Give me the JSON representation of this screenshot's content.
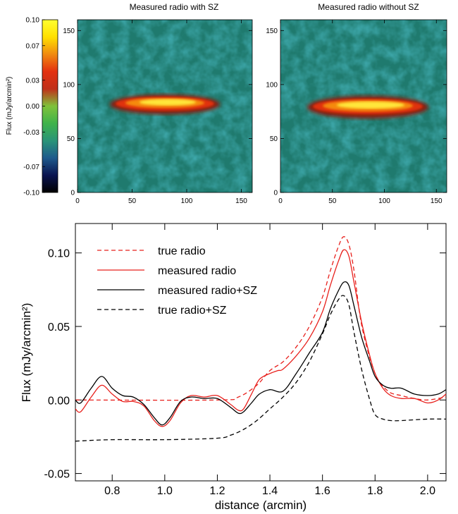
{
  "colorbar": {
    "label": "Flux (mJy/arcmin²)",
    "ticks": [
      "0.10",
      "0.07",
      "0.03",
      "0.00",
      "-0.03",
      "-0.07",
      "-0.10"
    ],
    "range": [
      -0.1,
      0.1
    ],
    "colors": [
      "#000000",
      "#0a1450",
      "#1e5a8c",
      "#2a9478",
      "#3fb34a",
      "#7fc23a",
      "#c0301a",
      "#e33010",
      "#f08a10",
      "#ffe000",
      "#ffff30"
    ]
  },
  "maps": [
    {
      "title": "Measured radio with SZ",
      "xticks": [
        "0",
        "50",
        "100",
        "150"
      ],
      "yticks": [
        "0",
        "50",
        "100",
        "150"
      ],
      "xrange": [
        0,
        160
      ],
      "yrange": [
        0,
        160
      ]
    },
    {
      "title": "Measured radio without SZ",
      "xticks": [
        "0",
        "50",
        "100",
        "150"
      ],
      "yticks": [
        "0",
        "50",
        "100",
        "150"
      ],
      "xrange": [
        0,
        160
      ],
      "yrange": [
        0,
        160
      ]
    }
  ],
  "chart_data": {
    "type": "line",
    "xlabel": "distance (arcmin)",
    "ylabel": "Flux (mJy/arcmin²)",
    "xlim": [
      0.66,
      2.07
    ],
    "ylim": [
      -0.055,
      0.12
    ],
    "xticks": [
      "0.8",
      "1.0",
      "1.2",
      "1.4",
      "1.6",
      "1.8",
      "2.0"
    ],
    "yticks": [
      "-0.05",
      "0.00",
      "0.05",
      "0.10"
    ],
    "legend_position": "top-left",
    "series": [
      {
        "name": "true radio",
        "color": "#e8201c",
        "dash": "dashed",
        "x": [
          0.66,
          1.2,
          1.28,
          1.35,
          1.4,
          1.45,
          1.5,
          1.55,
          1.6,
          1.63,
          1.66,
          1.68,
          1.7,
          1.72,
          1.75,
          1.8,
          1.85,
          1.9,
          1.95,
          2.0,
          2.07
        ],
        "y": [
          0.0,
          0.0,
          0.002,
          0.01,
          0.02,
          0.026,
          0.036,
          0.05,
          0.07,
          0.088,
          0.104,
          0.111,
          0.106,
          0.088,
          0.05,
          0.018,
          0.006,
          0.003,
          0.001,
          0.0,
          0.002
        ]
      },
      {
        "name": "measured radio",
        "color": "#e8201c",
        "dash": "solid",
        "x": [
          0.66,
          0.68,
          0.72,
          0.76,
          0.8,
          0.84,
          0.88,
          0.92,
          0.96,
          0.99,
          1.02,
          1.06,
          1.1,
          1.15,
          1.2,
          1.25,
          1.28,
          1.3,
          1.33,
          1.36,
          1.4,
          1.43,
          1.45,
          1.5,
          1.55,
          1.6,
          1.63,
          1.66,
          1.68,
          1.7,
          1.72,
          1.75,
          1.78,
          1.8,
          1.83,
          1.86,
          1.9,
          1.95,
          2.0,
          2.04,
          2.07
        ],
        "y": [
          -0.006,
          -0.008,
          0.002,
          0.01,
          0.004,
          -0.001,
          -0.001,
          -0.004,
          -0.014,
          -0.018,
          -0.014,
          -0.002,
          0.003,
          0.002,
          0.003,
          -0.003,
          -0.007,
          -0.006,
          0.004,
          0.014,
          0.018,
          0.02,
          0.021,
          0.03,
          0.042,
          0.06,
          0.078,
          0.094,
          0.102,
          0.098,
          0.08,
          0.052,
          0.03,
          0.018,
          0.008,
          0.003,
          0.001,
          0.001,
          -0.002,
          0.0,
          0.004
        ]
      },
      {
        "name": "measured radio+SZ",
        "color": "#000000",
        "dash": "solid",
        "x": [
          0.66,
          0.68,
          0.72,
          0.76,
          0.8,
          0.84,
          0.88,
          0.92,
          0.96,
          0.99,
          1.02,
          1.06,
          1.1,
          1.15,
          1.2,
          1.25,
          1.28,
          1.3,
          1.33,
          1.36,
          1.4,
          1.45,
          1.5,
          1.55,
          1.6,
          1.63,
          1.66,
          1.68,
          1.7,
          1.72,
          1.75,
          1.78,
          1.8,
          1.83,
          1.86,
          1.9,
          1.95,
          2.0,
          2.04,
          2.07
        ],
        "y": [
          0.0,
          -0.002,
          0.008,
          0.016,
          0.008,
          0.003,
          0.002,
          -0.003,
          -0.012,
          -0.017,
          -0.012,
          -0.001,
          0.002,
          0.001,
          0.001,
          -0.005,
          -0.009,
          -0.008,
          -0.002,
          0.004,
          0.007,
          0.006,
          0.018,
          0.032,
          0.046,
          0.062,
          0.074,
          0.08,
          0.078,
          0.064,
          0.042,
          0.026,
          0.016,
          0.01,
          0.008,
          0.008,
          0.004,
          0.003,
          0.004,
          0.007
        ]
      },
      {
        "name": "true radio+SZ",
        "color": "#000000",
        "dash": "dashed",
        "x": [
          0.66,
          0.8,
          1.0,
          1.2,
          1.25,
          1.3,
          1.35,
          1.4,
          1.45,
          1.5,
          1.55,
          1.6,
          1.63,
          1.66,
          1.68,
          1.7,
          1.72,
          1.75,
          1.78,
          1.8,
          1.83,
          1.86,
          1.9,
          2.0,
          2.07
        ],
        "y": [
          -0.028,
          -0.027,
          -0.027,
          -0.026,
          -0.024,
          -0.02,
          -0.014,
          -0.006,
          0.002,
          0.012,
          0.026,
          0.045,
          0.058,
          0.068,
          0.071,
          0.065,
          0.046,
          0.02,
          0.0,
          -0.01,
          -0.013,
          -0.014,
          -0.014,
          -0.013,
          -0.013
        ]
      }
    ]
  }
}
